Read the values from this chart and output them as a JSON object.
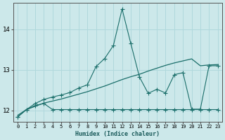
{
  "xlabel": "Humidex (Indice chaleur)",
  "bg_color": "#cce8ea",
  "grid_color": "#b0d8dc",
  "line_color": "#1a6e6a",
  "xlim": [
    -0.5,
    23.5
  ],
  "ylim": [
    11.72,
    14.65
  ],
  "yticks": [
    12,
    13,
    14
  ],
  "xticks": [
    0,
    1,
    2,
    3,
    4,
    5,
    6,
    7,
    8,
    9,
    10,
    11,
    12,
    13,
    14,
    15,
    16,
    17,
    18,
    19,
    20,
    21,
    22,
    23
  ],
  "spiky_x": [
    0,
    1,
    2,
    3,
    4,
    5,
    6,
    7,
    8,
    9,
    10,
    11,
    12,
    13,
    14,
    15,
    16,
    17,
    18,
    19,
    20,
    21,
    22,
    23
  ],
  "spiky_y": [
    11.84,
    12.02,
    12.17,
    12.27,
    12.33,
    12.38,
    12.44,
    12.55,
    12.63,
    13.08,
    13.28,
    13.6,
    14.5,
    13.65,
    12.82,
    12.42,
    12.52,
    12.43,
    12.88,
    12.93,
    12.03,
    12.03,
    13.1,
    13.1
  ],
  "smooth_x": [
    0,
    1,
    2,
    3,
    4,
    5,
    6,
    7,
    8,
    9,
    10,
    11,
    12,
    13,
    14,
    15,
    16,
    17,
    18,
    19,
    20,
    21,
    22,
    23
  ],
  "smooth_y": [
    11.88,
    12.02,
    12.1,
    12.18,
    12.23,
    12.28,
    12.34,
    12.4,
    12.46,
    12.53,
    12.6,
    12.68,
    12.76,
    12.83,
    12.89,
    12.97,
    13.04,
    13.11,
    13.17,
    13.22,
    13.27,
    13.1,
    13.12,
    13.13
  ],
  "flat_x": [
    0,
    1,
    2,
    3,
    4,
    5,
    6,
    7,
    8,
    9,
    10,
    11,
    12,
    13,
    14,
    15,
    16,
    17,
    18,
    19,
    20,
    21,
    22,
    23
  ],
  "flat_y": [
    11.84,
    12.02,
    12.12,
    12.17,
    12.02,
    12.02,
    12.02,
    12.02,
    12.02,
    12.02,
    12.02,
    12.02,
    12.02,
    12.02,
    12.02,
    12.02,
    12.02,
    12.02,
    12.02,
    12.02,
    12.02,
    12.02,
    12.02,
    12.02
  ]
}
